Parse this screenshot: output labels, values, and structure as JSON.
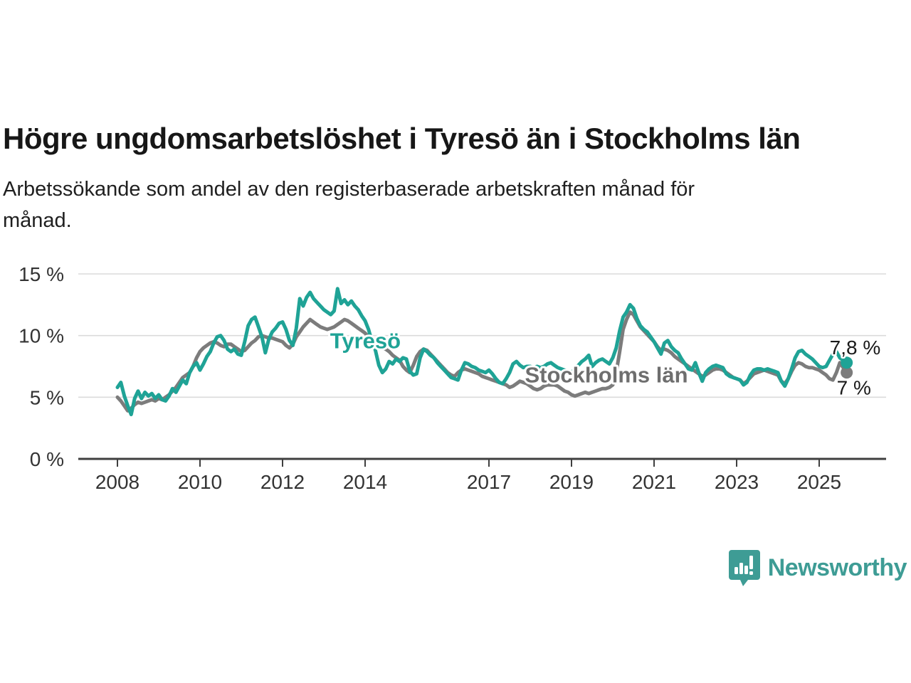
{
  "header": {
    "title": "Högre ungdomsarbetslöshet i Tyresö än i Stockholms län",
    "subtitle_lines": [
      "Arbetssökande som andel av den registerbaserade arbetskraften månad för",
      "månad."
    ]
  },
  "colors": {
    "tyreso": "#1FA396",
    "stockholm": "#7C7C7C",
    "stockholm_label": "#6E6E6E",
    "axis": "#3F3F3F",
    "axis_text": "#333333",
    "gridline": "#DBDBDB",
    "end_label_text": "#1A1A1A"
  },
  "chart_data": {
    "type": "line",
    "title": "Högre ungdomsarbetslöshet i Tyresö än i Stockholms län",
    "xlabel": "",
    "ylabel": "Arbetssökande som andel av den registerbaserade arbetskraften",
    "x_unit": "year (monthly data)",
    "x_start": 2008.0,
    "x_step": 0.0833333,
    "xlim": [
      2007.05,
      2026.65
    ],
    "ylim": [
      0,
      16.6
    ],
    "grid": "horizontal",
    "legend_position": "inline-labels",
    "x_axis": {
      "ticks": [
        2008,
        2010,
        2012,
        2014,
        2017,
        2019,
        2021,
        2023,
        2025
      ],
      "labels": [
        "2008",
        "2010",
        "2012",
        "2014",
        "2017",
        "2019",
        "2021",
        "2023",
        "2025"
      ]
    },
    "y_axis": {
      "ticks": [
        0,
        5,
        10,
        15
      ],
      "labels": [
        "0 %",
        "5 %",
        "10 %",
        "15 %"
      ],
      "grid_ticks": [
        5,
        10,
        15
      ]
    },
    "series": [
      {
        "name": "Stockholms län",
        "color": "#7C7C7C",
        "label_color": "#6E6E6E",
        "inline_label": {
          "text": "Stockholms län",
          "year": 2017.87,
          "pct": 6.85
        },
        "end_label": "7 %",
        "end_label_offset": [
          -14,
          31
        ],
        "end_value": 7.0,
        "values": [
          5.0,
          4.7,
          4.3,
          3.9,
          4.1,
          4.4,
          4.6,
          4.5,
          4.6,
          4.7,
          4.8,
          4.7,
          4.9,
          4.8,
          5.0,
          5.2,
          5.5,
          5.8,
          6.2,
          6.6,
          6.8,
          7.0,
          7.5,
          8.2,
          8.7,
          9.0,
          9.2,
          9.4,
          9.5,
          9.4,
          9.2,
          9.1,
          9.3,
          9.3,
          9.1,
          8.9,
          8.7,
          8.8,
          9.1,
          9.4,
          9.6,
          9.9,
          10.0,
          9.9,
          9.8,
          9.8,
          9.7,
          9.6,
          9.5,
          9.2,
          9.0,
          9.3,
          9.9,
          10.3,
          10.7,
          11.0,
          11.3,
          11.1,
          10.9,
          10.7,
          10.6,
          10.5,
          10.6,
          10.7,
          10.9,
          11.1,
          11.3,
          11.2,
          11.0,
          10.8,
          10.6,
          10.4,
          10.2,
          9.9,
          9.6,
          9.3,
          9.1,
          9.0,
          8.9,
          8.7,
          8.4,
          8.2,
          8.0,
          7.5,
          7.2,
          7.0,
          7.6,
          8.3,
          8.7,
          8.9,
          8.8,
          8.5,
          8.2,
          7.9,
          7.6,
          7.3,
          7.0,
          6.8,
          6.7,
          7.0,
          7.2,
          7.3,
          7.2,
          7.1,
          7.0,
          6.9,
          6.7,
          6.6,
          6.5,
          6.4,
          6.3,
          6.2,
          6.1,
          6.0,
          5.8,
          5.9,
          6.1,
          6.3,
          6.2,
          6.1,
          5.9,
          5.7,
          5.6,
          5.7,
          5.9,
          6.0,
          6.0,
          6.0,
          5.9,
          5.7,
          5.5,
          5.4,
          5.2,
          5.1,
          5.2,
          5.3,
          5.4,
          5.3,
          5.4,
          5.5,
          5.6,
          5.7,
          5.7,
          5.8,
          6.0,
          7.0,
          8.7,
          10.5,
          11.3,
          11.9,
          11.7,
          11.2,
          10.7,
          10.4,
          10.1,
          9.8,
          9.5,
          9.1,
          8.8,
          8.9,
          8.8,
          8.6,
          8.3,
          8.1,
          7.9,
          7.7,
          7.5,
          7.3,
          7.1,
          6.9,
          6.7,
          6.8,
          7.0,
          7.2,
          7.3,
          7.3,
          7.2,
          7.0,
          6.8,
          6.6,
          6.5,
          6.4,
          6.1,
          6.3,
          6.6,
          6.9,
          7.0,
          7.1,
          7.2,
          7.1,
          7.0,
          6.9,
          6.8,
          6.3,
          6.1,
          6.5,
          7.1,
          7.6,
          7.8,
          7.7,
          7.5,
          7.4,
          7.4,
          7.3,
          7.2,
          7.0,
          6.8,
          6.5,
          6.4,
          7.0,
          7.8,
          7.4,
          7.0
        ]
      },
      {
        "name": "Tyresö",
        "color": "#1FA396",
        "label_color": "#1FA396",
        "inline_label": {
          "text": "Tyresö",
          "year": 2013.15,
          "pct": 9.6
        },
        "end_label": "7,8 %",
        "end_label_offset": [
          -24,
          -12
        ],
        "end_value": 7.8,
        "values": [
          5.8,
          6.2,
          5.1,
          4.3,
          3.6,
          4.9,
          5.5,
          4.9,
          5.4,
          5.1,
          5.3,
          4.9,
          5.2,
          4.8,
          4.7,
          5.1,
          5.7,
          5.4,
          5.9,
          6.4,
          6.1,
          7.0,
          7.5,
          7.8,
          7.2,
          7.7,
          8.3,
          8.7,
          9.4,
          9.9,
          10.0,
          9.6,
          8.9,
          8.7,
          8.9,
          8.5,
          8.4,
          9.5,
          10.8,
          11.3,
          11.5,
          10.7,
          9.9,
          8.6,
          9.7,
          10.3,
          10.6,
          11.0,
          11.1,
          10.5,
          9.6,
          9.2,
          10.6,
          13.0,
          12.4,
          13.1,
          13.5,
          13.0,
          12.7,
          12.4,
          12.1,
          11.9,
          11.7,
          12.0,
          13.8,
          12.6,
          12.9,
          12.5,
          12.8,
          12.4,
          12.1,
          11.6,
          11.2,
          10.5,
          9.5,
          8.8,
          7.6,
          7.0,
          7.3,
          7.9,
          7.7,
          8.1,
          7.9,
          8.2,
          8.1,
          7.1,
          6.8,
          6.9,
          8.2,
          8.9,
          8.7,
          8.4,
          8.2,
          7.8,
          7.5,
          7.2,
          6.9,
          6.6,
          6.5,
          6.4,
          7.2,
          7.8,
          7.7,
          7.5,
          7.4,
          7.2,
          7.1,
          7.0,
          7.2,
          6.9,
          6.5,
          6.2,
          6.1,
          6.5,
          7.0,
          7.7,
          7.9,
          7.6,
          7.4,
          7.5,
          7.5,
          7.4,
          7.5,
          7.4,
          7.5,
          7.7,
          7.8,
          7.6,
          7.4,
          7.3,
          7.2,
          7.1,
          7.0,
          7.3,
          7.6,
          7.9,
          8.1,
          8.4,
          7.5,
          7.8,
          8.0,
          8.1,
          7.9,
          7.7,
          8.2,
          9.0,
          10.4,
          11.5,
          11.9,
          12.5,
          12.2,
          11.4,
          10.8,
          10.5,
          10.3,
          9.9,
          9.5,
          9.0,
          8.5,
          9.4,
          9.6,
          9.1,
          8.8,
          8.6,
          8.1,
          7.7,
          7.3,
          7.2,
          7.8,
          7.0,
          6.3,
          7.0,
          7.3,
          7.5,
          7.6,
          7.5,
          7.4,
          6.9,
          6.7,
          6.6,
          6.5,
          6.4,
          6.0,
          6.2,
          6.8,
          7.2,
          7.3,
          7.3,
          7.2,
          7.3,
          7.2,
          7.1,
          7.0,
          6.3,
          5.9,
          6.5,
          7.3,
          8.2,
          8.7,
          8.8,
          8.5,
          8.3,
          8.1,
          7.8,
          7.5,
          7.4,
          7.5,
          8.0,
          8.5,
          8.7,
          8.2,
          8.0,
          7.8
        ]
      }
    ]
  },
  "branding": {
    "logo_text": "Newsworthy",
    "logo_color": "#3E9C95",
    "logo_icon": "newsworthy-bubble-bars-icon"
  }
}
